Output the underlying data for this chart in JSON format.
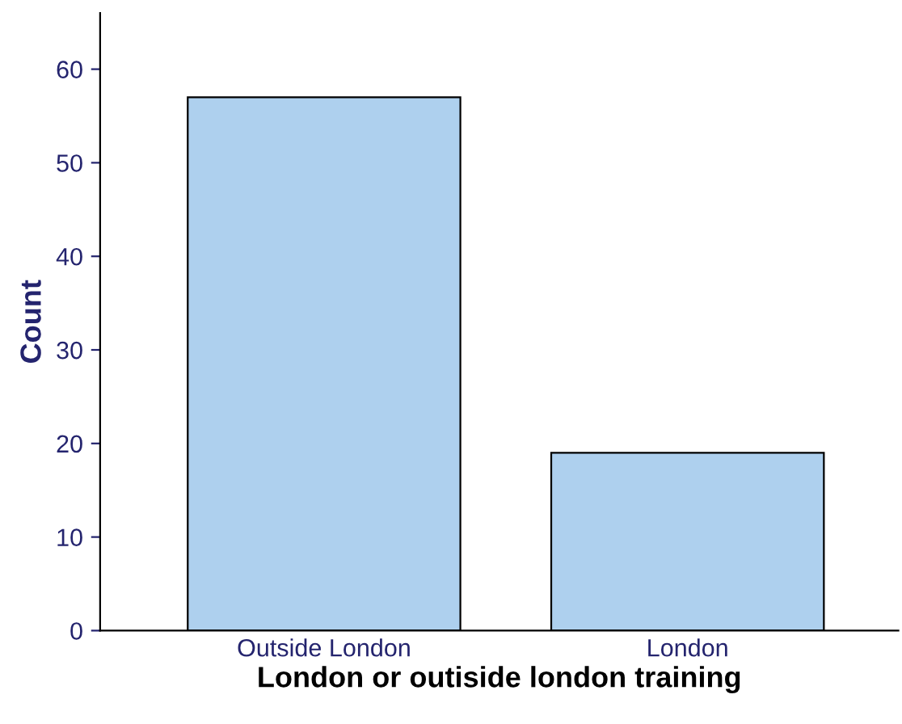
{
  "chart_data": {
    "type": "bar",
    "xlabel": "London or outiside london training",
    "ylabel": "Count",
    "categories": [
      "Outside London",
      "London"
    ],
    "values": [
      57,
      19
    ],
    "color": "#aed0ee",
    "ylim": [
      0,
      66
    ],
    "yticks": [
      0,
      10,
      20,
      30,
      40,
      50,
      60
    ],
    "grid": false
  }
}
